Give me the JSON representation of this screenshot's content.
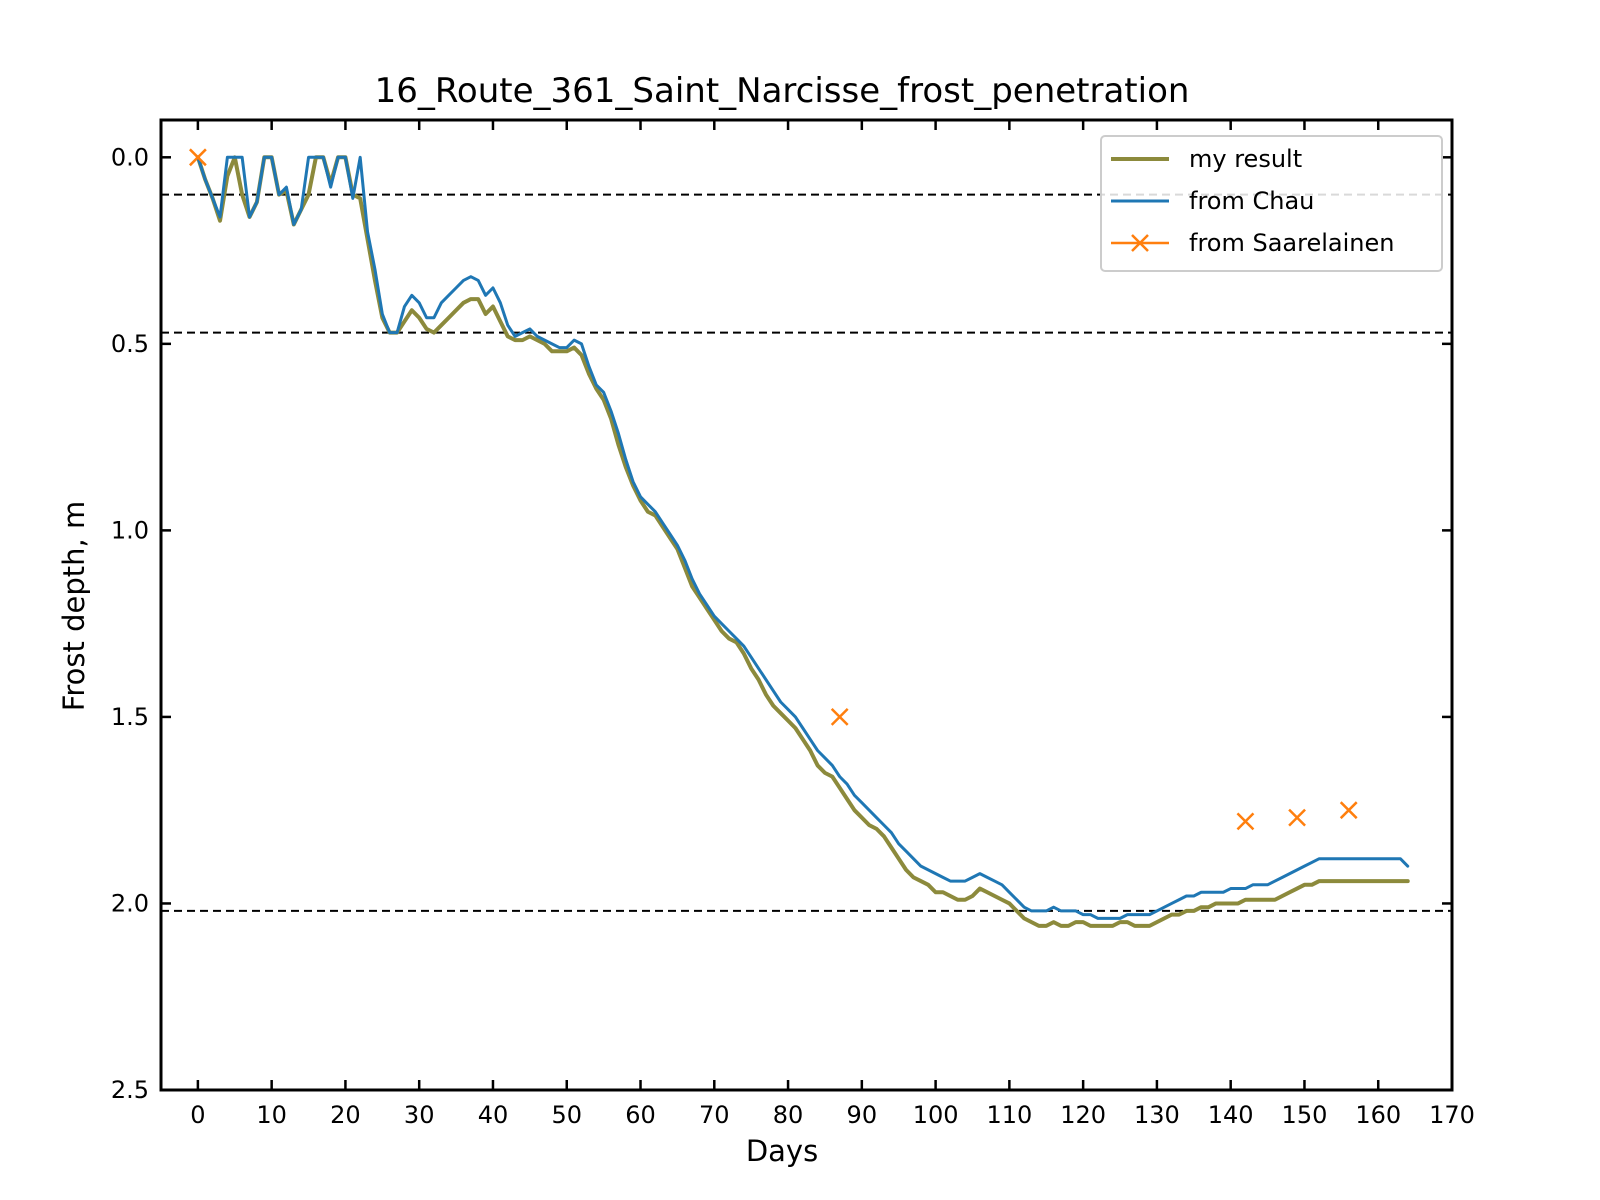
{
  "chart_data": {
    "type": "line",
    "title": "16_Route_361_Saint_Narcisse_frost_penetration",
    "xlabel": "Days",
    "ylabel": "Frost depth, m",
    "xlim": [
      -5,
      170
    ],
    "ylim": [
      2.5,
      -0.1
    ],
    "y_inverted": true,
    "grid": false,
    "legend_position": "top-right",
    "xticks": [
      0,
      10,
      20,
      30,
      40,
      50,
      60,
      70,
      80,
      90,
      100,
      110,
      120,
      130,
      140,
      150,
      160,
      170
    ],
    "yticks": [
      0.0,
      0.5,
      1.0,
      1.5,
      2.0,
      2.5
    ],
    "hlines": [
      0.1,
      0.47,
      2.02
    ],
    "colors": {
      "my_result": "#8c8a3c",
      "chau": "#1f77b4",
      "saarelainen": "#ff7f0e",
      "hline": "#000000"
    },
    "series": [
      {
        "name": "my result",
        "style": "line",
        "x": [
          0,
          1,
          2,
          3,
          4,
          5,
          6,
          7,
          8,
          9,
          10,
          11,
          12,
          13,
          14,
          15,
          16,
          17,
          18,
          19,
          20,
          21,
          22,
          23,
          24,
          25,
          26,
          27,
          28,
          29,
          30,
          31,
          32,
          33,
          34,
          35,
          36,
          37,
          38,
          39,
          40,
          41,
          42,
          43,
          44,
          45,
          46,
          47,
          48,
          49,
          50,
          51,
          52,
          53,
          54,
          55,
          56,
          57,
          58,
          59,
          60,
          61,
          62,
          63,
          64,
          65,
          66,
          67,
          68,
          69,
          70,
          71,
          72,
          73,
          74,
          75,
          76,
          77,
          78,
          79,
          80,
          81,
          82,
          83,
          84,
          85,
          86,
          87,
          88,
          89,
          90,
          91,
          92,
          93,
          94,
          95,
          96,
          97,
          98,
          99,
          100,
          101,
          102,
          103,
          104,
          105,
          106,
          107,
          108,
          109,
          110,
          111,
          112,
          113,
          114,
          115,
          116,
          117,
          118,
          119,
          120,
          121,
          122,
          123,
          124,
          125,
          126,
          127,
          128,
          129,
          130,
          131,
          132,
          133,
          134,
          135,
          136,
          137,
          138,
          139,
          140,
          141,
          142,
          143,
          144,
          145,
          146,
          147,
          148,
          149,
          150,
          151,
          152,
          153,
          154,
          155,
          156,
          157,
          158,
          159,
          160,
          161,
          162,
          163,
          164
        ],
        "y": [
          0.0,
          0.06,
          0.11,
          0.17,
          0.05,
          0.0,
          0.1,
          0.16,
          0.12,
          0.0,
          0.0,
          0.1,
          0.09,
          0.18,
          0.14,
          0.1,
          0.0,
          0.0,
          0.07,
          0.0,
          0.0,
          0.1,
          0.11,
          0.22,
          0.33,
          0.43,
          0.47,
          0.47,
          0.44,
          0.41,
          0.43,
          0.46,
          0.47,
          0.45,
          0.43,
          0.41,
          0.39,
          0.38,
          0.38,
          0.42,
          0.4,
          0.44,
          0.48,
          0.49,
          0.49,
          0.48,
          0.49,
          0.5,
          0.52,
          0.52,
          0.52,
          0.51,
          0.53,
          0.58,
          0.62,
          0.65,
          0.7,
          0.77,
          0.83,
          0.88,
          0.92,
          0.95,
          0.96,
          0.99,
          1.02,
          1.05,
          1.1,
          1.15,
          1.18,
          1.21,
          1.24,
          1.27,
          1.29,
          1.3,
          1.33,
          1.37,
          1.4,
          1.44,
          1.47,
          1.49,
          1.51,
          1.53,
          1.56,
          1.59,
          1.63,
          1.65,
          1.66,
          1.69,
          1.72,
          1.75,
          1.77,
          1.79,
          1.8,
          1.82,
          1.85,
          1.88,
          1.91,
          1.93,
          1.94,
          1.95,
          1.97,
          1.97,
          1.98,
          1.99,
          1.99,
          1.98,
          1.96,
          1.97,
          1.98,
          1.99,
          2.0,
          2.02,
          2.04,
          2.05,
          2.06,
          2.06,
          2.05,
          2.06,
          2.06,
          2.05,
          2.05,
          2.06,
          2.06,
          2.06,
          2.06,
          2.05,
          2.05,
          2.06,
          2.06,
          2.06,
          2.05,
          2.04,
          2.03,
          2.03,
          2.02,
          2.02,
          2.01,
          2.01,
          2.0,
          2.0,
          2.0,
          2.0,
          1.99,
          1.99,
          1.99,
          1.99,
          1.99,
          1.98,
          1.97,
          1.96,
          1.95,
          1.95,
          1.94,
          1.94,
          1.94,
          1.94,
          1.94,
          1.94,
          1.94,
          1.94,
          1.94,
          1.94,
          1.94,
          1.94,
          1.94
        ]
      },
      {
        "name": "from Chau",
        "style": "line",
        "x": [
          0,
          1,
          2,
          3,
          4,
          5,
          6,
          7,
          8,
          9,
          10,
          11,
          12,
          13,
          14,
          15,
          16,
          17,
          18,
          19,
          20,
          21,
          22,
          23,
          24,
          25,
          26,
          27,
          28,
          29,
          30,
          31,
          32,
          33,
          34,
          35,
          36,
          37,
          38,
          39,
          40,
          41,
          42,
          43,
          44,
          45,
          46,
          47,
          48,
          49,
          50,
          51,
          52,
          53,
          54,
          55,
          56,
          57,
          58,
          59,
          60,
          61,
          62,
          63,
          64,
          65,
          66,
          67,
          68,
          69,
          70,
          71,
          72,
          73,
          74,
          75,
          76,
          77,
          78,
          79,
          80,
          81,
          82,
          83,
          84,
          85,
          86,
          87,
          88,
          89,
          90,
          91,
          92,
          93,
          94,
          95,
          96,
          97,
          98,
          99,
          100,
          101,
          102,
          103,
          104,
          105,
          106,
          107,
          108,
          109,
          110,
          111,
          112,
          113,
          114,
          115,
          116,
          117,
          118,
          119,
          120,
          121,
          122,
          123,
          124,
          125,
          126,
          127,
          128,
          129,
          130,
          131,
          132,
          133,
          134,
          135,
          136,
          137,
          138,
          139,
          140,
          141,
          142,
          143,
          144,
          145,
          146,
          147,
          148,
          149,
          150,
          151,
          152,
          153,
          154,
          155,
          156,
          157,
          158,
          159,
          160,
          161,
          162,
          163,
          164
        ],
        "y": [
          0.0,
          0.06,
          0.11,
          0.16,
          0.0,
          0.0,
          0.0,
          0.16,
          0.12,
          0.0,
          0.0,
          0.1,
          0.08,
          0.18,
          0.14,
          0.0,
          0.0,
          0.0,
          0.08,
          0.0,
          0.0,
          0.11,
          0.0,
          0.2,
          0.3,
          0.42,
          0.47,
          0.47,
          0.4,
          0.37,
          0.39,
          0.43,
          0.43,
          0.39,
          0.37,
          0.35,
          0.33,
          0.32,
          0.33,
          0.37,
          0.35,
          0.39,
          0.45,
          0.48,
          0.47,
          0.46,
          0.48,
          0.49,
          0.5,
          0.51,
          0.51,
          0.49,
          0.5,
          0.56,
          0.61,
          0.63,
          0.68,
          0.74,
          0.81,
          0.87,
          0.91,
          0.93,
          0.95,
          0.98,
          1.01,
          1.04,
          1.08,
          1.13,
          1.17,
          1.2,
          1.23,
          1.25,
          1.27,
          1.29,
          1.31,
          1.34,
          1.37,
          1.4,
          1.43,
          1.46,
          1.48,
          1.5,
          1.53,
          1.56,
          1.59,
          1.61,
          1.63,
          1.66,
          1.68,
          1.71,
          1.73,
          1.75,
          1.77,
          1.79,
          1.81,
          1.84,
          1.86,
          1.88,
          1.9,
          1.91,
          1.92,
          1.93,
          1.94,
          1.94,
          1.94,
          1.93,
          1.92,
          1.93,
          1.94,
          1.95,
          1.97,
          1.99,
          2.01,
          2.02,
          2.02,
          2.02,
          2.01,
          2.02,
          2.02,
          2.02,
          2.03,
          2.03,
          2.04,
          2.04,
          2.04,
          2.04,
          2.03,
          2.03,
          2.03,
          2.03,
          2.02,
          2.01,
          2.0,
          1.99,
          1.98,
          1.98,
          1.97,
          1.97,
          1.97,
          1.97,
          1.96,
          1.96,
          1.96,
          1.95,
          1.95,
          1.95,
          1.94,
          1.93,
          1.92,
          1.91,
          1.9,
          1.89,
          1.88,
          1.88,
          1.88,
          1.88,
          1.88,
          1.88,
          1.88,
          1.88,
          1.88,
          1.88,
          1.88,
          1.88,
          1.9
        ]
      },
      {
        "name": "from Saarelainen",
        "style": "markers",
        "marker": "x",
        "x": [
          0,
          87,
          142,
          149,
          156
        ],
        "y": [
          0.0,
          1.5,
          1.78,
          1.77,
          1.75
        ]
      }
    ]
  }
}
